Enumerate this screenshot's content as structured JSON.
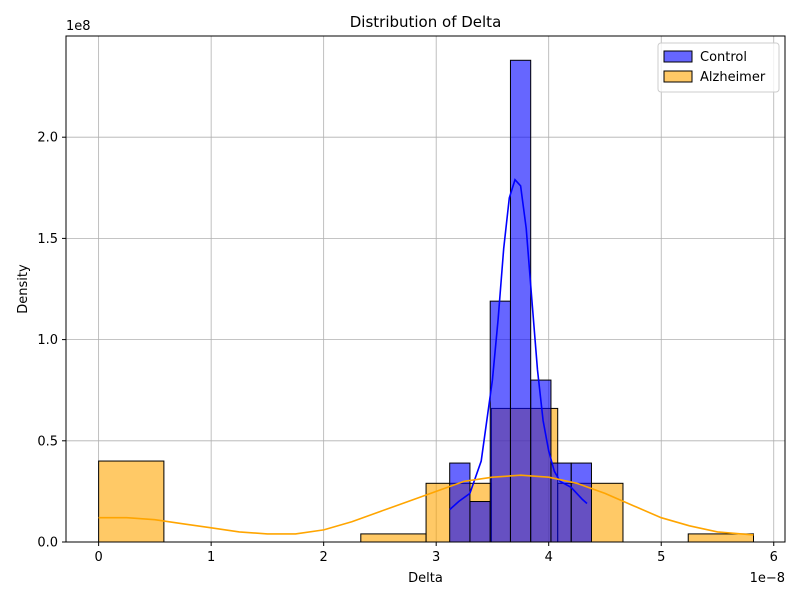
{
  "chart_data": {
    "type": "histogram",
    "title": "Distribution of Delta",
    "xlabel": "Delta",
    "ylabel": "Density",
    "x_offset_text": "1e−8",
    "y_offset_text": "1e8",
    "xlim": [
      -0.29,
      6.1
    ],
    "ylim": [
      0,
      2.5
    ],
    "xticks": [
      0,
      1,
      2,
      3,
      4,
      5,
      6
    ],
    "yticks": [
      0.0,
      0.5,
      1.0,
      1.5,
      2.0
    ],
    "xtick_labels": [
      "0",
      "1",
      "2",
      "3",
      "4",
      "5",
      "6"
    ],
    "ytick_labels": [
      "0.0",
      "0.5",
      "1.0",
      "1.5",
      "2.0"
    ],
    "grid": true,
    "legend_position": "top-right",
    "series": [
      {
        "name": "Control",
        "color": "#0000ff",
        "bins": [
          {
            "x0": 3.12,
            "x1": 3.3,
            "density": 0.39
          },
          {
            "x0": 3.3,
            "x1": 3.48,
            "density": 0.2
          },
          {
            "x0": 3.48,
            "x1": 3.66,
            "density": 1.19
          },
          {
            "x0": 3.66,
            "x1": 3.84,
            "density": 2.38
          },
          {
            "x0": 3.84,
            "x1": 4.02,
            "density": 0.8
          },
          {
            "x0": 4.02,
            "x1": 4.2,
            "density": 0.39
          },
          {
            "x0": 4.2,
            "x1": 4.38,
            "density": 0.39
          }
        ],
        "kde": [
          [
            3.12,
            0.16
          ],
          [
            3.2,
            0.2
          ],
          [
            3.3,
            0.24
          ],
          [
            3.4,
            0.4
          ],
          [
            3.5,
            0.8
          ],
          [
            3.55,
            1.1
          ],
          [
            3.6,
            1.45
          ],
          [
            3.65,
            1.7
          ],
          [
            3.7,
            1.79
          ],
          [
            3.75,
            1.76
          ],
          [
            3.8,
            1.55
          ],
          [
            3.85,
            1.2
          ],
          [
            3.9,
            0.85
          ],
          [
            3.95,
            0.6
          ],
          [
            4.0,
            0.45
          ],
          [
            4.05,
            0.35
          ],
          [
            4.1,
            0.3
          ],
          [
            4.2,
            0.27
          ],
          [
            4.3,
            0.21
          ],
          [
            4.34,
            0.19
          ]
        ]
      },
      {
        "name": "Alzheimer",
        "color": "#ffa500",
        "bins": [
          {
            "x0": 0.0,
            "x1": 0.58,
            "density": 0.4
          },
          {
            "x0": 2.33,
            "x1": 2.91,
            "density": 0.04
          },
          {
            "x0": 2.91,
            "x1": 3.49,
            "density": 0.29
          },
          {
            "x0": 3.49,
            "x1": 4.08,
            "density": 0.66
          },
          {
            "x0": 4.08,
            "x1": 4.66,
            "density": 0.29
          },
          {
            "x0": 5.24,
            "x1": 5.82,
            "density": 0.04
          }
        ],
        "kde": [
          [
            0.0,
            0.12
          ],
          [
            0.25,
            0.12
          ],
          [
            0.5,
            0.11
          ],
          [
            0.75,
            0.09
          ],
          [
            1.0,
            0.07
          ],
          [
            1.25,
            0.05
          ],
          [
            1.5,
            0.04
          ],
          [
            1.75,
            0.04
          ],
          [
            2.0,
            0.06
          ],
          [
            2.25,
            0.1
          ],
          [
            2.5,
            0.15
          ],
          [
            2.75,
            0.2
          ],
          [
            3.0,
            0.25
          ],
          [
            3.25,
            0.3
          ],
          [
            3.5,
            0.32
          ],
          [
            3.75,
            0.33
          ],
          [
            4.0,
            0.32
          ],
          [
            4.25,
            0.29
          ],
          [
            4.5,
            0.24
          ],
          [
            4.75,
            0.18
          ],
          [
            5.0,
            0.12
          ],
          [
            5.25,
            0.08
          ],
          [
            5.5,
            0.05
          ],
          [
            5.82,
            0.035
          ]
        ]
      }
    ]
  }
}
